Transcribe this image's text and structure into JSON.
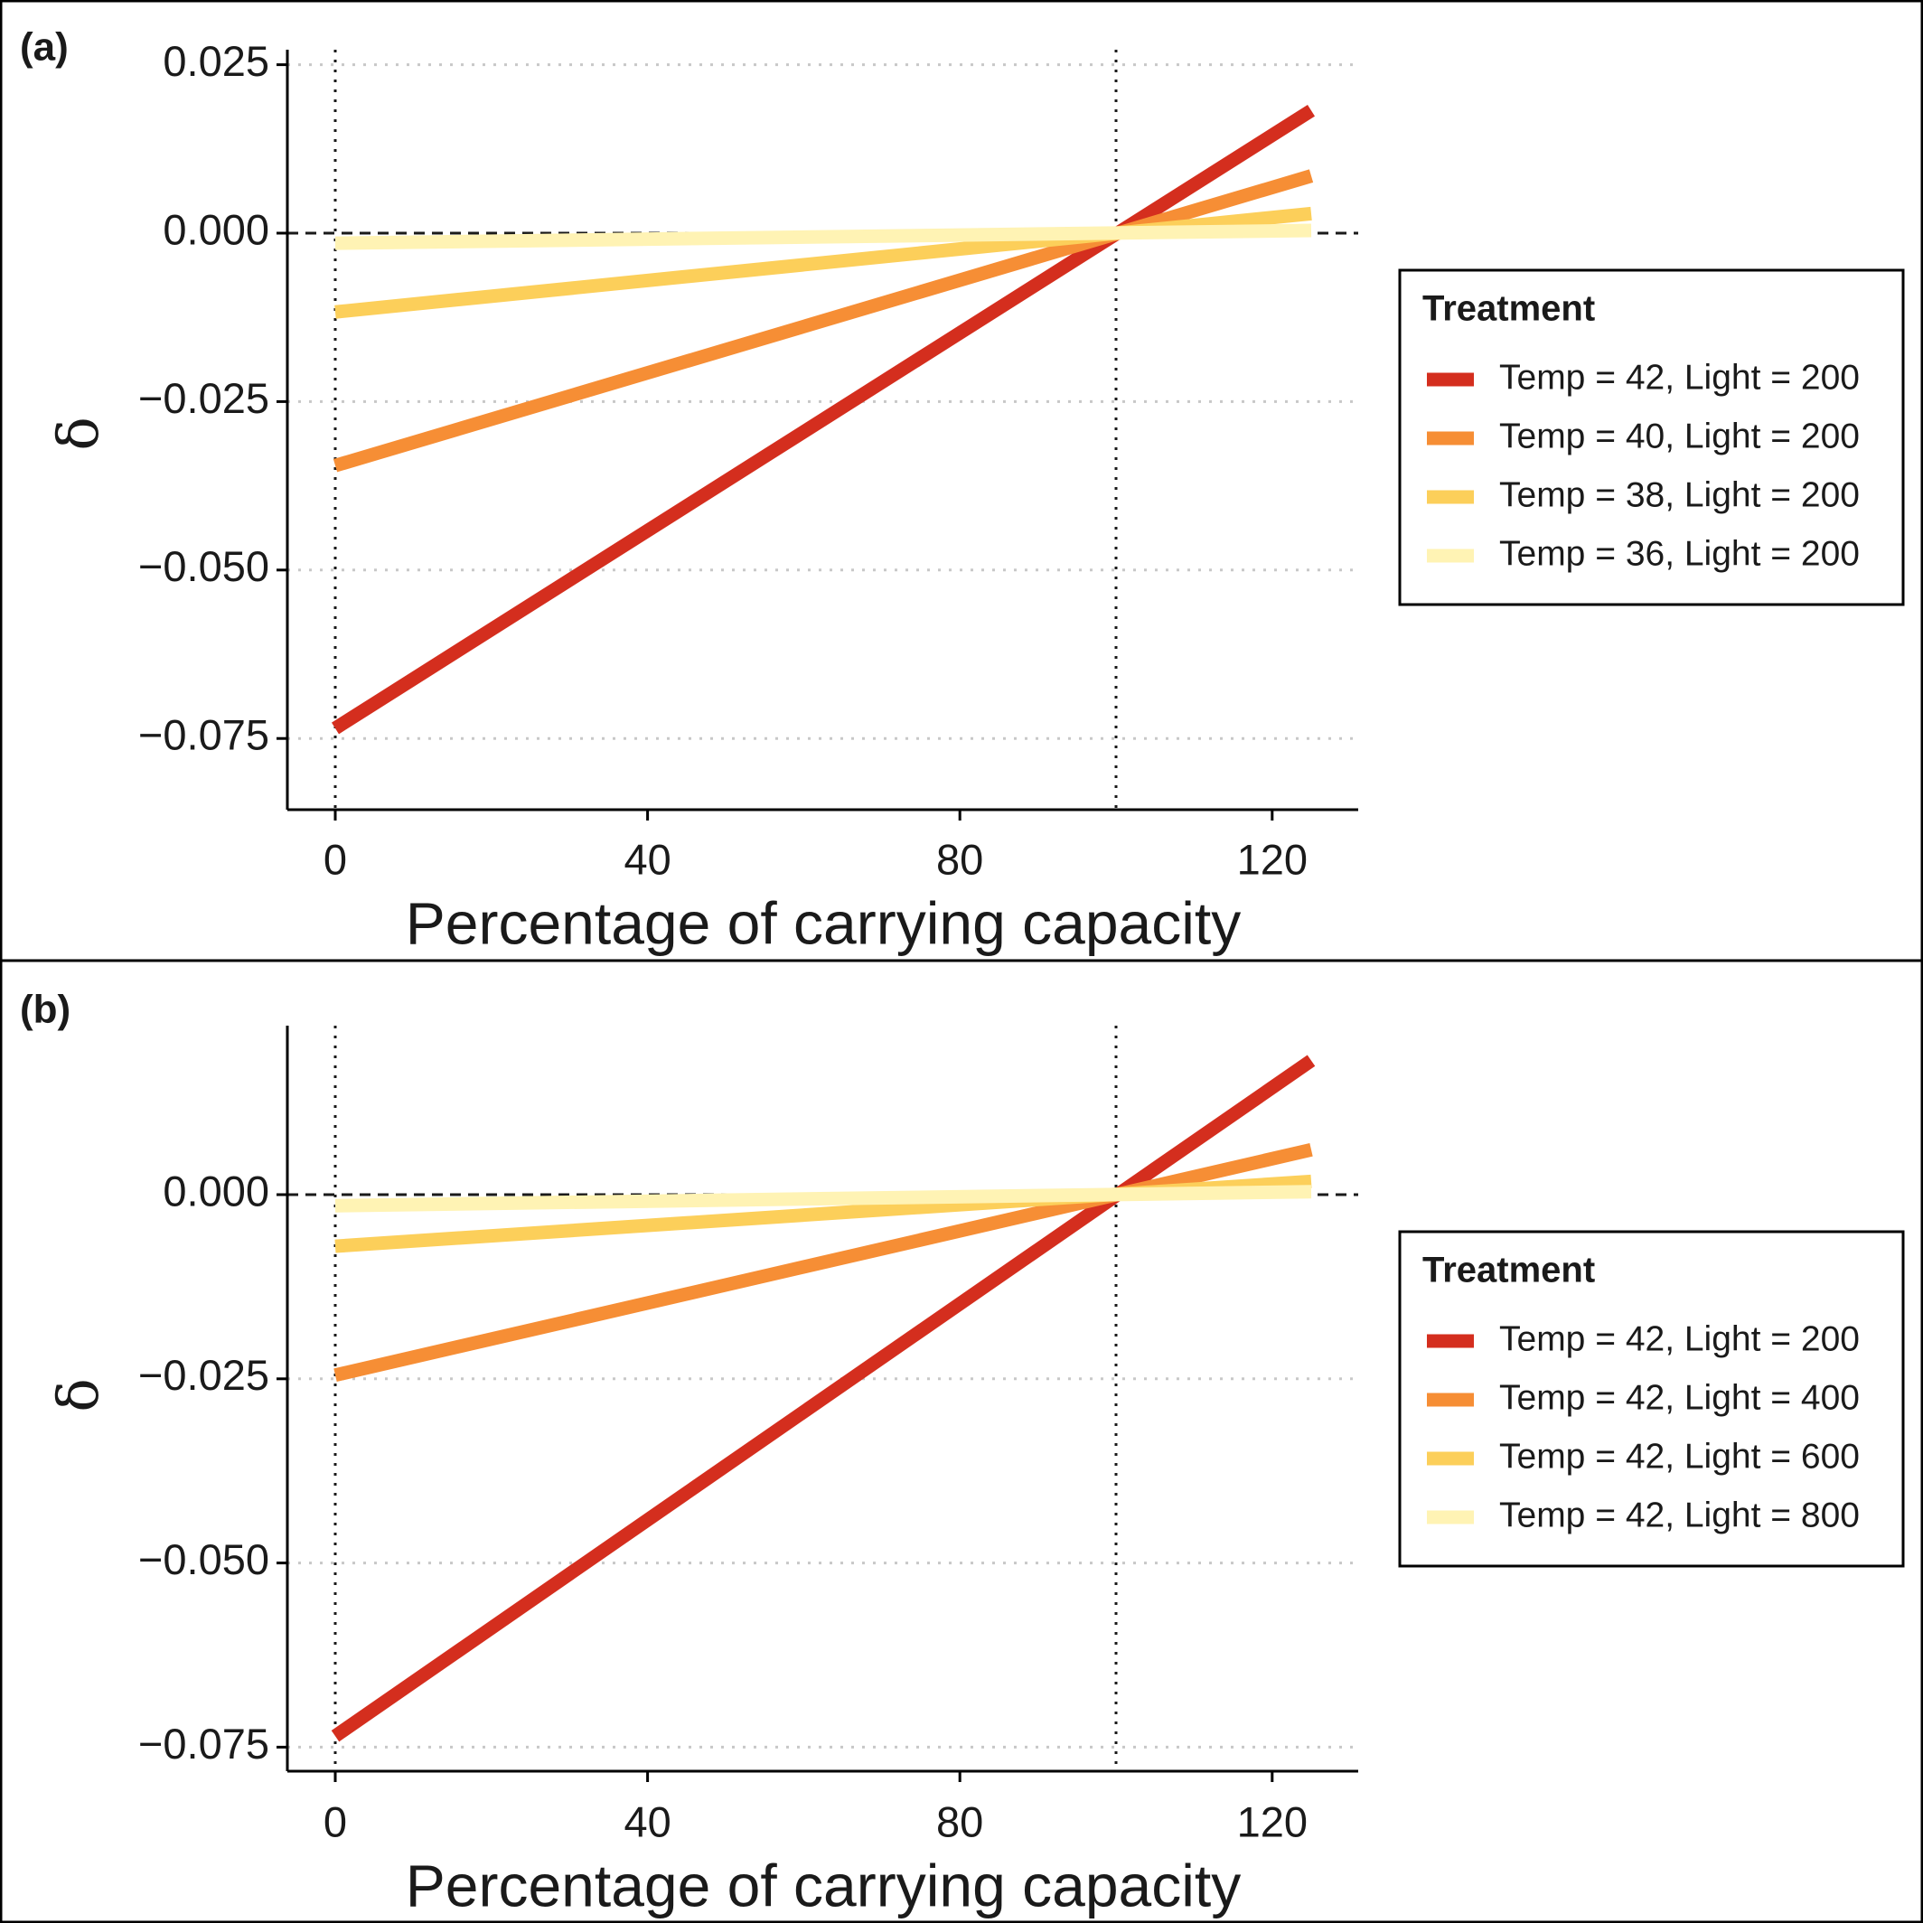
{
  "chart_data": [
    {
      "panel_label": "(a)",
      "type": "line",
      "xlabel": "Percentage of carrying capacity",
      "ylabel": "δ",
      "xlim": [
        -5,
        130
      ],
      "ylim": [
        -0.085,
        0.025
      ],
      "xticks": [
        0,
        40,
        80,
        120
      ],
      "xtick_labels": [
        "0",
        "40",
        "80",
        "120"
      ],
      "yticks": [
        0.025,
        0.0,
        -0.025,
        -0.05,
        -0.075
      ],
      "ytick_labels": [
        "0.025",
        "0.000",
        "−0.025",
        "−0.050",
        "−0.075"
      ],
      "grid": "horizontal dotted",
      "reference_lines": {
        "vertical_dotted_x": [
          0,
          100
        ],
        "horizontal_dashed_y": 0
      },
      "legend": {
        "title": "Treatment",
        "position": "right"
      },
      "series": [
        {
          "name": "Temp = 42, Light = 200",
          "color": "#d42e1e",
          "x": [
            0,
            125
          ],
          "y": [
            -0.0735,
            0.0182
          ]
        },
        {
          "name": "Temp = 40, Light = 200",
          "color": "#f68e35",
          "x": [
            0,
            125
          ],
          "y": [
            -0.0345,
            0.0085
          ]
        },
        {
          "name": "Temp = 38, Light = 200",
          "color": "#fccf5a",
          "x": [
            0,
            125
          ],
          "y": [
            -0.0117,
            0.0029
          ]
        },
        {
          "name": "Temp = 36, Light = 200",
          "color": "#fff3b4",
          "x": [
            0,
            125
          ],
          "y": [
            -0.0015,
            0.0004
          ]
        }
      ]
    },
    {
      "panel_label": "(b)",
      "type": "line",
      "xlabel": "Percentage of carrying capacity",
      "ylabel": "δ",
      "xlim": [
        -5,
        130
      ],
      "ylim": [
        -0.078,
        0.023
      ],
      "xticks": [
        0,
        40,
        80,
        120
      ],
      "xtick_labels": [
        "0",
        "40",
        "80",
        "120"
      ],
      "yticks": [
        0.0,
        -0.025,
        -0.05,
        -0.075
      ],
      "ytick_labels": [
        "0.000",
        "−0.025",
        "−0.050",
        "−0.075"
      ],
      "grid": "horizontal dotted",
      "reference_lines": {
        "vertical_dotted_x": [
          0,
          100
        ],
        "horizontal_dashed_y": 0
      },
      "legend": {
        "title": "Treatment",
        "position": "right"
      },
      "series": [
        {
          "name": "Temp = 42, Light = 200",
          "color": "#d42e1e",
          "x": [
            0,
            125
          ],
          "y": [
            -0.0735,
            0.0182
          ]
        },
        {
          "name": "Temp = 42, Light = 400",
          "color": "#f68e35",
          "x": [
            0,
            125
          ],
          "y": [
            -0.0245,
            0.0061
          ]
        },
        {
          "name": "Temp = 42, Light = 600",
          "color": "#fccf5a",
          "x": [
            0,
            125
          ],
          "y": [
            -0.007,
            0.0018
          ]
        },
        {
          "name": "Temp = 42, Light = 800",
          "color": "#fff3b4",
          "x": [
            0,
            125
          ],
          "y": [
            -0.0015,
            0.0004
          ]
        }
      ]
    }
  ]
}
